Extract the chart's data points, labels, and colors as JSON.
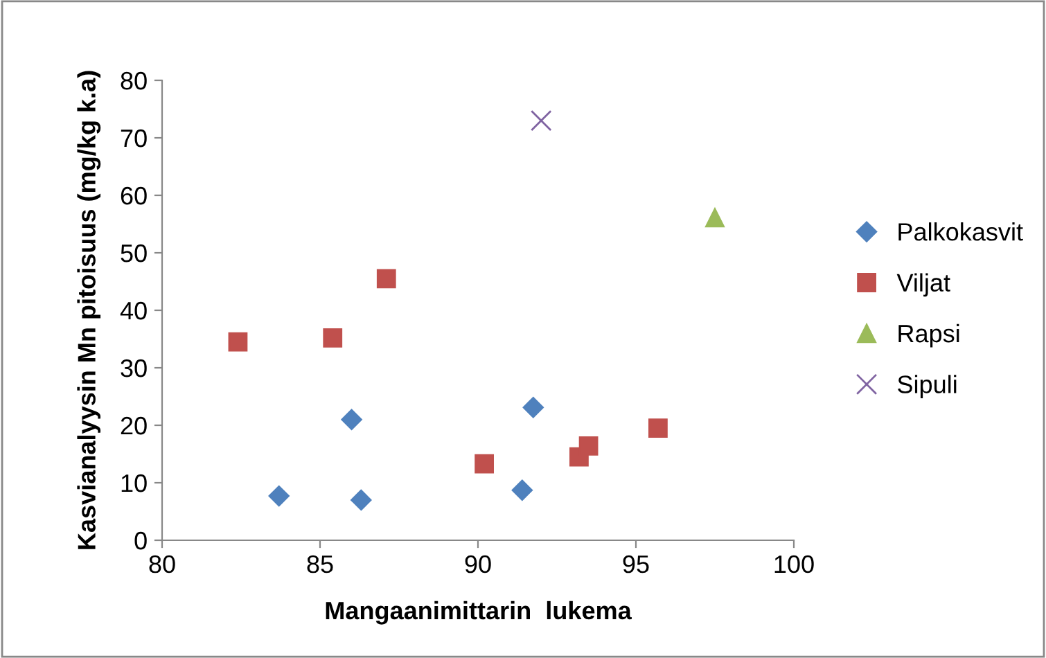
{
  "chart_data": {
    "type": "scatter",
    "xlabel": "Mangaanimittarin  lukema",
    "ylabel": "Kasvianalyysin Mn pitoisuus (mg/kg k.a)",
    "xlim": [
      80,
      100
    ],
    "xticks": [
      80,
      85,
      90,
      95,
      100
    ],
    "ylim": [
      0,
      80
    ],
    "yticks": [
      0,
      10,
      20,
      30,
      40,
      50,
      60,
      70,
      80
    ],
    "grid": false,
    "legend": "right",
    "series": [
      {
        "name": "Palkokasvit",
        "color": "#4f81bd",
        "marker": "diamond",
        "x": [
          83.7,
          86.0,
          86.3,
          91.4,
          91.75
        ],
        "values": [
          7.7,
          21.0,
          7.0,
          8.7,
          23.1
        ]
      },
      {
        "name": "Viljat",
        "color": "#c0504d",
        "marker": "square",
        "x": [
          82.4,
          85.4,
          87.1,
          90.2,
          93.2,
          93.5,
          95.7
        ],
        "values": [
          34.5,
          35.2,
          45.5,
          13.3,
          14.5,
          16.4,
          19.5
        ]
      },
      {
        "name": "Rapsi",
        "color": "#9bbb59",
        "marker": "triangle",
        "x": [
          97.5
        ],
        "values": [
          56.1
        ]
      },
      {
        "name": "Sipuli",
        "color": "#8064a2",
        "marker": "cross",
        "x": [
          92.0
        ],
        "values": [
          73.0
        ]
      }
    ]
  }
}
